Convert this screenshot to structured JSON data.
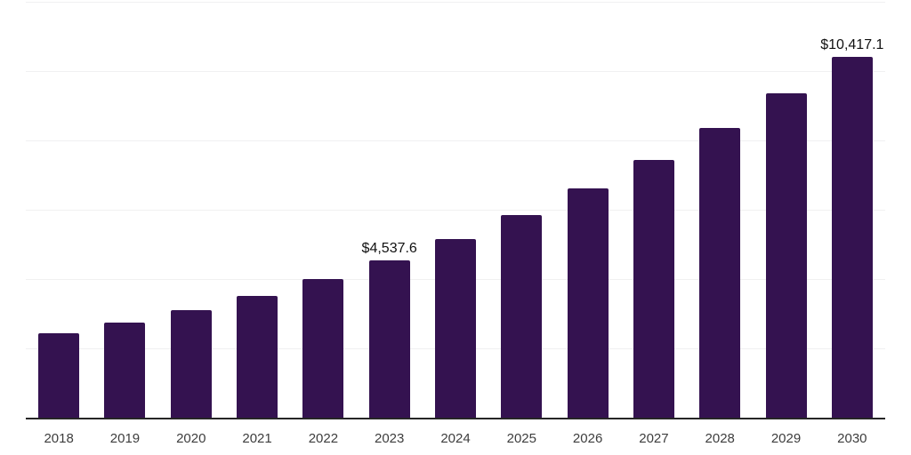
{
  "chart_data": {
    "type": "bar",
    "title": "",
    "xlabel": "",
    "ylabel": "",
    "categories": [
      "2018",
      "2019",
      "2020",
      "2021",
      "2022",
      "2023",
      "2024",
      "2025",
      "2026",
      "2027",
      "2028",
      "2029",
      "2030"
    ],
    "values": [
      2435,
      2755,
      3115,
      3515,
      4000,
      4537.6,
      5155,
      5835,
      6605,
      7435,
      8370,
      9360,
      10417.1
    ],
    "annotations": [
      {
        "category": "2023",
        "text": "$4,537.6"
      },
      {
        "category": "2030",
        "text": "$10,417.1"
      }
    ],
    "ylim": [
      0,
      12000
    ],
    "gridline_step": 2000,
    "grid": "horizontal",
    "legend_position": "none",
    "y_axis_tick_labels_visible": false,
    "colors": {
      "bar": "#341250",
      "axis_line": "#262626",
      "gridline": "#f0f0f1",
      "tick_label": "#3d3d3d",
      "data_label": "#111111",
      "background": "#ffffff"
    }
  }
}
